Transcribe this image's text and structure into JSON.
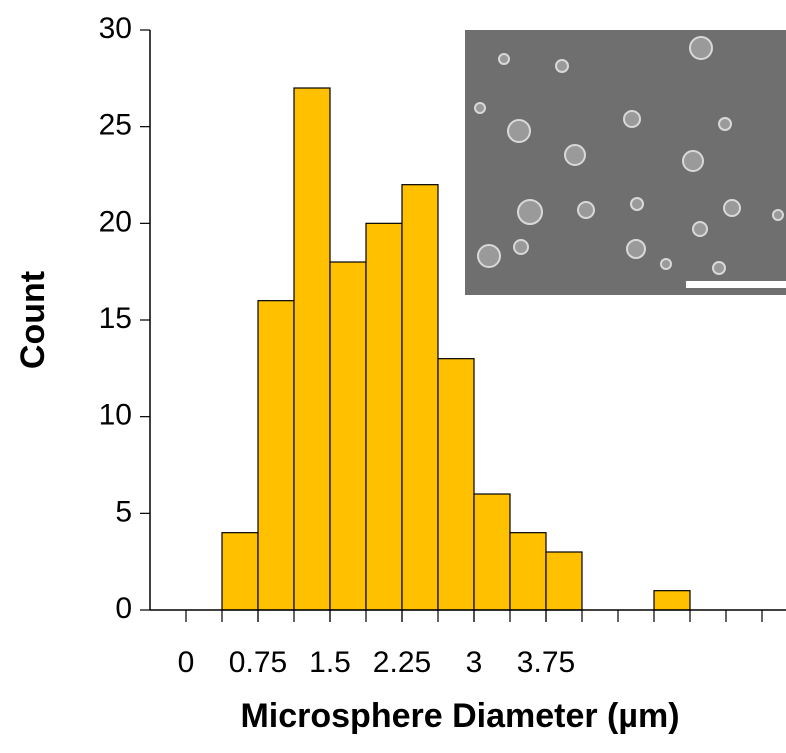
{
  "chart_data": {
    "type": "histogram",
    "bins": [
      0.375,
      0.75,
      1.125,
      1.5,
      1.875,
      2.25,
      2.625,
      3,
      3.375,
      3.75,
      4.125,
      4.5,
      4.875,
      5.25,
      5.625,
      6
    ],
    "values": [
      4,
      16,
      27,
      18,
      20,
      22,
      13,
      6,
      4,
      3,
      0,
      0,
      1,
      0,
      0
    ],
    "color": "#ffc000",
    "xlim": [
      -0.375,
      6.25
    ],
    "ylim": [
      0,
      30
    ],
    "xticks": [
      0,
      0.75,
      1.5,
      2.25,
      3,
      3.75
    ],
    "yticks": [
      0,
      5,
      10,
      15,
      20,
      25,
      30
    ],
    "xlabel": "Microsphere Diameter (µm)",
    "ylabel": "Count"
  }
}
